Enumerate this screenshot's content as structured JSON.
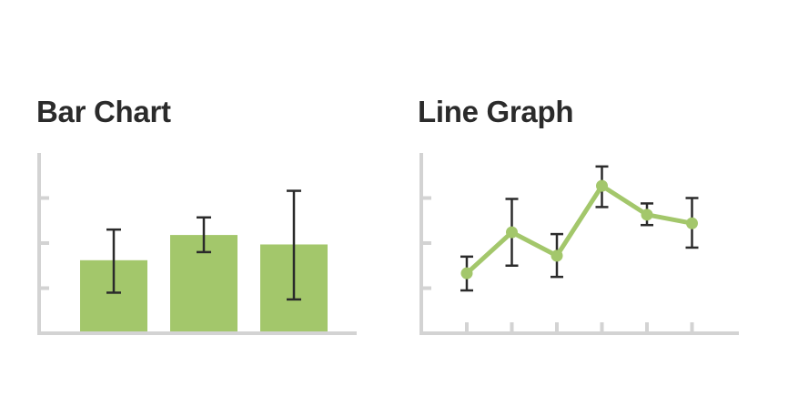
{
  "chart_data": [
    {
      "type": "bar",
      "title": "Bar Chart",
      "ylim": [
        0,
        4
      ],
      "yticks": [
        1,
        2,
        3
      ],
      "categories": [
        "",
        "",
        ""
      ],
      "values": [
        1.62,
        2.18,
        1.97
      ],
      "error_low": [
        0.9,
        1.8,
        0.75
      ],
      "error_high": [
        2.3,
        2.57,
        3.16
      ],
      "grid": false,
      "colors": {
        "bar": "#a3c76b",
        "axis": "#d3d3d3",
        "error": "#2b2b2b"
      }
    },
    {
      "type": "line",
      "title": "Line Graph",
      "ylim": [
        0,
        4
      ],
      "yticks": [
        1,
        2,
        3
      ],
      "x": [
        1,
        2,
        3,
        4,
        5,
        6
      ],
      "values": [
        1.33,
        2.24,
        1.72,
        3.27,
        2.63,
        2.44
      ],
      "error_low": [
        0.95,
        1.5,
        1.25,
        2.8,
        2.4,
        1.9
      ],
      "error_high": [
        1.7,
        2.98,
        2.2,
        3.7,
        2.88,
        3.0
      ],
      "grid": false,
      "colors": {
        "line": "#a3c76b",
        "axis": "#d3d3d3",
        "error": "#2b2b2b"
      }
    }
  ]
}
